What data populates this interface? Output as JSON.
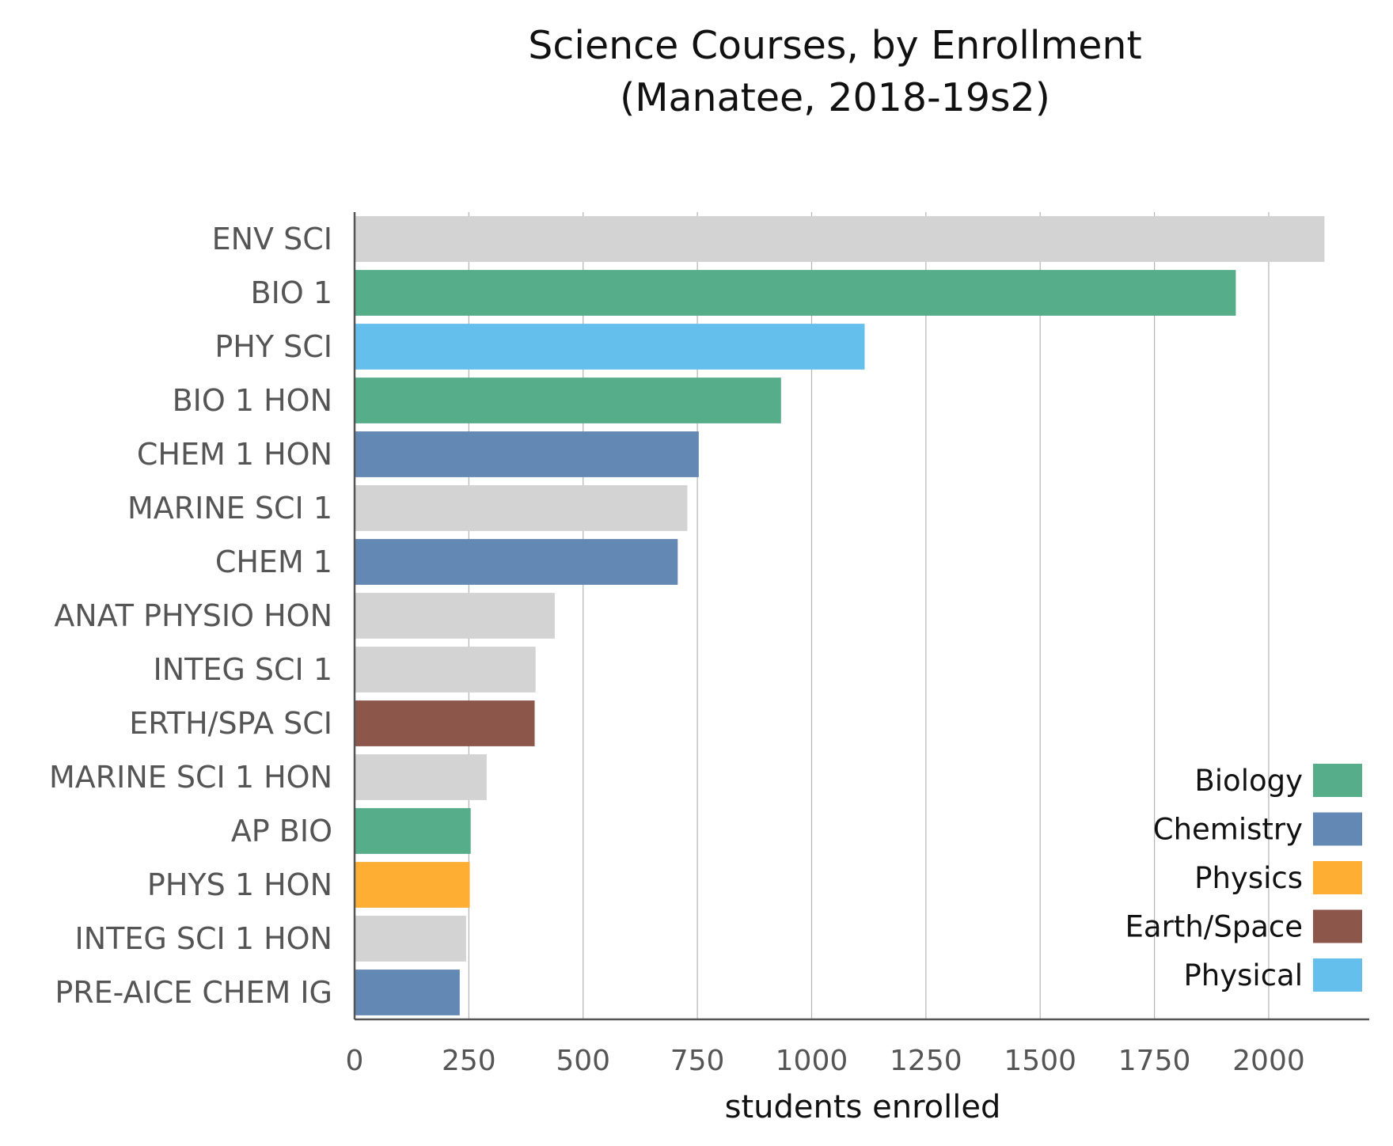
{
  "chart_data": {
    "type": "bar",
    "orientation": "horizontal",
    "title": [
      "Science Courses, by Enrollment",
      "(Manatee, 2018-19s2)"
    ],
    "xlabel": "students enrolled",
    "ylabel": "",
    "xlim": [
      0,
      2220
    ],
    "xticks": [
      0,
      250,
      500,
      750,
      1000,
      1250,
      1500,
      1750,
      2000
    ],
    "grid": "vertical",
    "legend_position": "bottom-right",
    "colors": {
      "Biology": "#55ad89",
      "Chemistry": "#6388b4",
      "Physics": "#ffae34",
      "Earth/Space": "#8c564b",
      "Physical": "#64bfec",
      "Other": "#d3d3d3"
    },
    "legend": [
      "Biology",
      "Chemistry",
      "Physics",
      "Earth/Space",
      "Physical"
    ],
    "categories": [
      "ENV SCI",
      "BIO 1",
      "PHY SCI",
      "BIO 1 HON",
      "CHEM 1 HON",
      "MARINE SCI 1",
      "CHEM 1",
      "ANAT PHYSIO HON",
      "INTEG SCI 1",
      "ERTH/SPA SCI",
      "MARINE SCI 1 HON",
      "AP BIO",
      "PHYS 1 HON",
      "INTEG SCI 1 HON",
      "PRE-AICE CHEM IG"
    ],
    "values": [
      2122,
      1928,
      1116,
      933,
      753,
      728,
      707,
      438,
      396,
      394,
      289,
      254,
      252,
      244,
      230
    ],
    "groups": [
      "Other",
      "Biology",
      "Physical",
      "Biology",
      "Chemistry",
      "Other",
      "Chemistry",
      "Other",
      "Other",
      "Earth/Space",
      "Other",
      "Biology",
      "Physics",
      "Other",
      "Chemistry"
    ]
  }
}
